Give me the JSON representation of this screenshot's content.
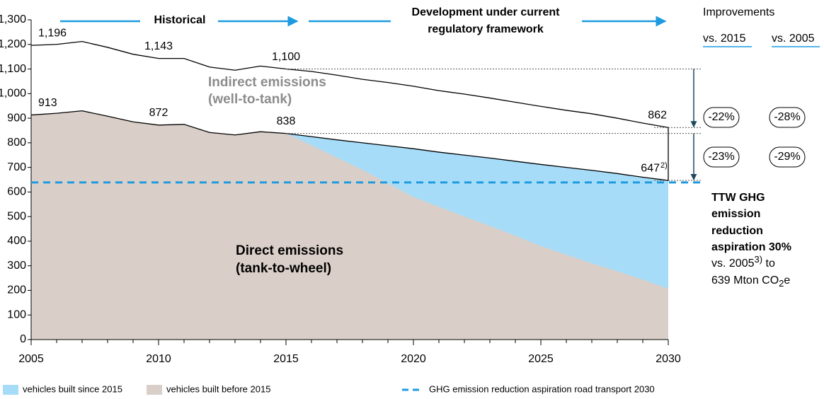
{
  "chart_data": {
    "type": "area",
    "header": {
      "historical": "Historical",
      "development": [
        "Development under current",
        "regulatory framework"
      ]
    },
    "x": [
      2005,
      2006,
      2007,
      2008,
      2009,
      2010,
      2011,
      2012,
      2013,
      2014,
      2015,
      2016,
      2017,
      2018,
      2019,
      2020,
      2021,
      2022,
      2023,
      2024,
      2025,
      2026,
      2027,
      2028,
      2029,
      2030
    ],
    "series": [
      {
        "name": "vehicles built since 2015",
        "color": "#a6dcf8",
        "values": [
          913,
          920,
          930,
          908,
          885,
          872,
          875,
          842,
          832,
          845,
          838,
          825,
          812,
          800,
          788,
          776,
          762,
          750,
          738,
          725,
          712,
          700,
          688,
          675,
          660,
          647
        ],
        "value_labels": [
          "913",
          null,
          null,
          null,
          null,
          "872",
          null,
          null,
          null,
          null,
          "838",
          null,
          null,
          null,
          null,
          null,
          null,
          null,
          null,
          null,
          null,
          null,
          null,
          null,
          null,
          "647"
        ]
      },
      {
        "name": "vehicles built before 2015",
        "color": "#dacfc8",
        "values": [
          913,
          920,
          930,
          908,
          885,
          872,
          875,
          842,
          832,
          845,
          838,
          790,
          740,
          690,
          635,
          580,
          540,
          500,
          462,
          422,
          380,
          345,
          310,
          278,
          243,
          207
        ]
      },
      {
        "color": "#000000",
        "values": [
          1196,
          1200,
          1212,
          1188,
          1160,
          1143,
          1143,
          1108,
          1095,
          1112,
          1100,
          1090,
          1075,
          1058,
          1045,
          1030,
          1012,
          998,
          982,
          965,
          948,
          932,
          918,
          900,
          880,
          862
        ],
        "value_labels": [
          "1,196",
          null,
          null,
          null,
          null,
          "1,143",
          null,
          null,
          null,
          null,
          "1,100",
          null,
          null,
          null,
          null,
          null,
          null,
          null,
          null,
          null,
          null,
          null,
          null,
          null,
          null,
          "862"
        ]
      }
    ],
    "label_footnote": "2)",
    "xlim": [
      2005,
      2030
    ],
    "xticks": [
      2005,
      2010,
      2015,
      2020,
      2025,
      2030
    ],
    "ylim": [
      0,
      1300
    ],
    "yticks": [
      0,
      100,
      200,
      300,
      400,
      500,
      600,
      700,
      800,
      900,
      {
        "value": 1000,
        "label": "1,000"
      },
      {
        "value": 1100,
        "label": "1,100"
      },
      {
        "value": 1200,
        "label": "1,200"
      },
      {
        "value": 1300,
        "label": "1,300"
      }
    ],
    "target": {
      "value": 639,
      "label": "GHG emission reduction aspiration road transport 2030",
      "color": "#1e9be0"
    },
    "area_labels": {
      "indirect": [
        "Indirect emissions",
        "(well-to-tank)"
      ],
      "direct": [
        "Direct emissions",
        "(tank-to-wheel)"
      ]
    },
    "improvements": {
      "title": "Improvements",
      "columns": [
        "vs. 2015",
        "vs. 2005"
      ],
      "rows": [
        [
          "-22%",
          "-28%"
        ],
        [
          "-23%",
          "-29%"
        ]
      ]
    },
    "aspiration": {
      "bold": [
        "TTW GHG",
        "emission",
        "reduction",
        "aspiration 30%"
      ],
      "line5": [
        "vs. 2005",
        "3)",
        " to"
      ],
      "line6": [
        "639 Mton CO",
        "2",
        "e"
      ]
    }
  }
}
